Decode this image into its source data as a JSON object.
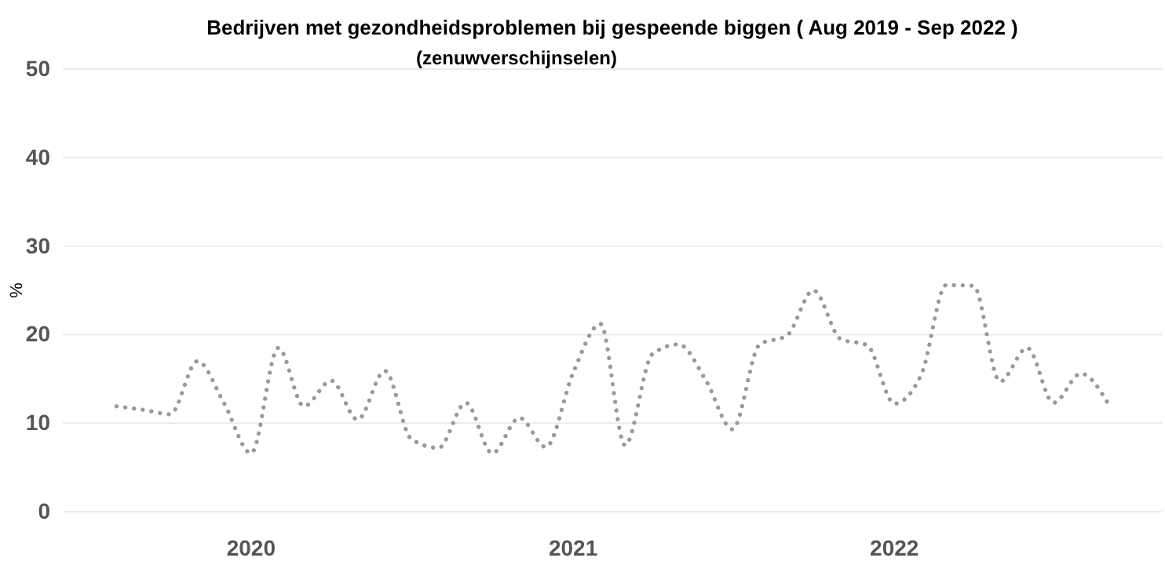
{
  "chart_data": {
    "type": "line",
    "title": "Bedrijven met gezondheidsproblemen bij gespeende biggen ( Aug 2019 - Sep 2022 )",
    "subtitle": "(zenuwverschijnselen)",
    "ylabel": "%",
    "x": [
      "2019-08",
      "2019-09",
      "2019-10",
      "2019-11",
      "2019-12",
      "2020-01",
      "2020-02",
      "2020-03",
      "2020-04",
      "2020-05",
      "2020-06",
      "2020-07",
      "2020-08",
      "2020-09",
      "2020-10",
      "2020-11",
      "2020-12",
      "2021-01",
      "2021-02",
      "2021-03",
      "2021-04",
      "2021-05",
      "2021-06",
      "2021-07",
      "2021-08",
      "2021-09",
      "2021-10",
      "2021-11",
      "2021-12",
      "2022-01",
      "2022-02",
      "2022-03",
      "2022-04",
      "2022-05",
      "2022-06",
      "2022-07",
      "2022-08",
      "2022-09"
    ],
    "series": [
      {
        "color": "#999999",
        "values": [
          11.9,
          11.5,
          11.0,
          17.0,
          12.3,
          6.6,
          18.5,
          11.9,
          14.8,
          10.4,
          15.9,
          8.2,
          7.2,
          12.3,
          6.6,
          10.6,
          7.3,
          15.7,
          21.2,
          7.5,
          17.8,
          18.9,
          14.8,
          9.3,
          18.9,
          19.9,
          25.0,
          19.5,
          18.8,
          12.2,
          15.6,
          25.6,
          25.5,
          14.7,
          18.5,
          12.3,
          15.6,
          12.2
        ]
      }
    ],
    "xlim": [
      "2019-06",
      "2022-11"
    ],
    "xticks": [
      {
        "value": "2020",
        "label": "2020"
      },
      {
        "value": "2021",
        "label": "2021"
      },
      {
        "value": "2022",
        "label": "2022"
      }
    ],
    "ylim": [
      0,
      50
    ],
    "yticks": [
      0,
      10,
      20,
      30,
      40,
      50
    ],
    "grid": "y",
    "line_style": "dotted"
  }
}
